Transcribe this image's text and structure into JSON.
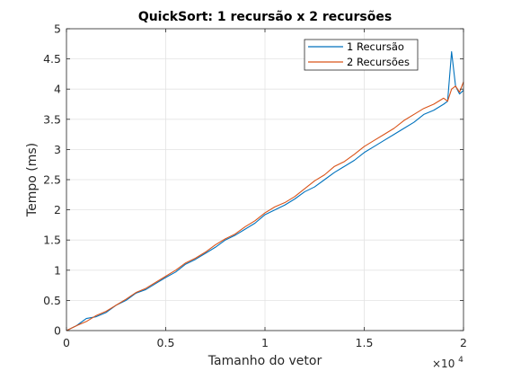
{
  "chart_data": {
    "type": "line",
    "title": "QuickSort: 1 recursão x 2 recursões",
    "xlabel": "Tamanho do vetor",
    "ylabel": "Tempo (ms)",
    "x_exponent_label": "×10",
    "x_exponent_power": "4",
    "xlim": [
      0,
      20000
    ],
    "ylim": [
      0,
      5
    ],
    "x_ticks": [
      0,
      5000,
      10000,
      15000,
      20000
    ],
    "x_tick_labels": [
      "0",
      "0.5",
      "1",
      "1.5",
      "2"
    ],
    "y_ticks": [
      0,
      0.5,
      1,
      1.5,
      2,
      2.5,
      3,
      3.5,
      4,
      4.5,
      5
    ],
    "y_tick_labels": [
      "0",
      "0.5",
      "1",
      "1.5",
      "2",
      "2.5",
      "3",
      "3.5",
      "4",
      "4.5",
      "5"
    ],
    "grid": true,
    "legend_position": "top-right",
    "x": [
      0,
      500,
      1000,
      1500,
      2000,
      2500,
      3000,
      3500,
      4000,
      4500,
      5000,
      5500,
      6000,
      6500,
      7000,
      7500,
      8000,
      8500,
      9000,
      9500,
      10000,
      10500,
      11000,
      11500,
      12000,
      12500,
      13000,
      13500,
      14000,
      14500,
      15000,
      15500,
      16000,
      16500,
      17000,
      17500,
      18000,
      18500,
      19000,
      19200,
      19400,
      19600,
      19800,
      20000
    ],
    "series": [
      {
        "name": "1 Recursão",
        "color": "#0072BD",
        "values": [
          0.0,
          0.08,
          0.2,
          0.23,
          0.3,
          0.42,
          0.5,
          0.62,
          0.68,
          0.78,
          0.88,
          0.97,
          1.1,
          1.18,
          1.28,
          1.38,
          1.5,
          1.58,
          1.68,
          1.78,
          1.92,
          2.0,
          2.08,
          2.18,
          2.3,
          2.38,
          2.5,
          2.62,
          2.72,
          2.82,
          2.95,
          3.05,
          3.15,
          3.25,
          3.35,
          3.45,
          3.58,
          3.65,
          3.75,
          3.8,
          4.62,
          4.05,
          3.92,
          3.98
        ]
      },
      {
        "name": "2 Recursões",
        "color": "#D95319",
        "values": [
          0.0,
          0.08,
          0.15,
          0.25,
          0.32,
          0.42,
          0.52,
          0.63,
          0.7,
          0.8,
          0.9,
          1.0,
          1.12,
          1.2,
          1.3,
          1.42,
          1.52,
          1.6,
          1.72,
          1.82,
          1.95,
          2.05,
          2.12,
          2.22,
          2.35,
          2.48,
          2.58,
          2.72,
          2.8,
          2.92,
          3.05,
          3.15,
          3.25,
          3.35,
          3.48,
          3.58,
          3.68,
          3.75,
          3.85,
          3.8,
          4.0,
          4.05,
          3.95,
          4.12
        ]
      }
    ]
  }
}
